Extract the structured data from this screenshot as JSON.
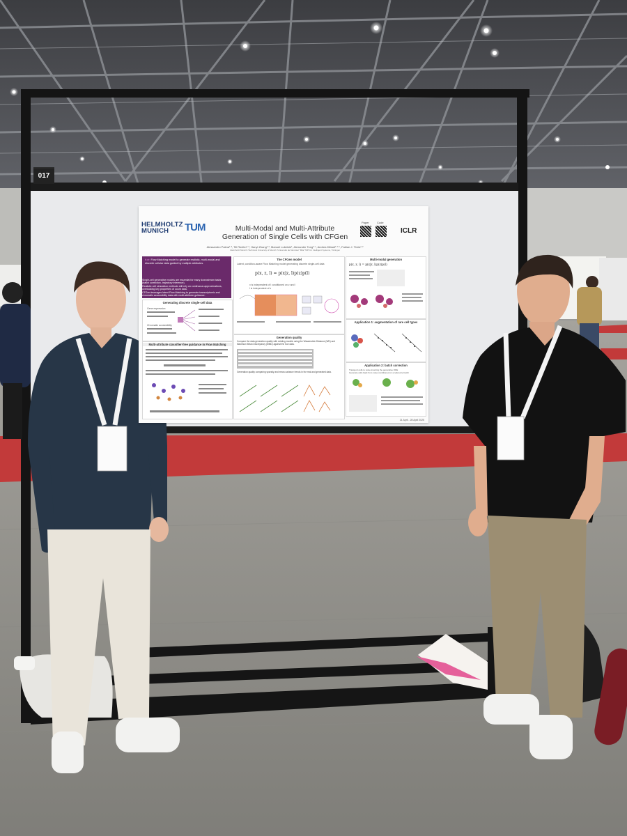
{
  "booth": {
    "number": "017"
  },
  "poster": {
    "logos": {
      "helmholtz_line1": "HELMHOLTZ",
      "helmholtz_line2": "MUNICH",
      "tum": "TUM",
      "iclr": "ICLR"
    },
    "qr_labels": {
      "paper": "Paper",
      "code": "Code"
    },
    "title_line1": "Multi-Modal and Multi-Attribute",
    "title_line2": "Generation of Single Cells with CFGen",
    "authors": "Alessandro Palma¹·², Till Richter¹·², Hanyi Zhang¹·², Manuel Lubetzki¹, Alexander Tong³·⁴, Andrea Dittadi¹·²·⁵, Fabian J. Theis¹·²",
    "affiliations": "¹Helmholtz Munich  ²Technical University of Munich  ³Université de Montréal  ⁴Mila  ⁵MPI for Intelligent Systems, Tübingen",
    "tldr_label": "tl;dr:",
    "tldr": "Flow Matching model to generate realistic, multi-modal and discrete cellular data guided by multiple attributes.",
    "bullets": [
      "Single-cell generative models are essential for many downstream tasks (batch correction, trajectory inference).",
      "Realistic cell simulation methods still rely on continuous approximations, overlooking key properties of count data.",
      "CFGen leverages latent Flow Matching to generate transcriptomic and chromatin accessibility data with multi-attribute guidance."
    ],
    "sections": {
      "generating": "Generating discrete single-cell data",
      "guidance": "Multi-attribute classifier-free guidance in Flow Matching",
      "model": "The CFGen model",
      "model_sub": "Latent, condition-aware Flow Matching model generating discrete single-cell data",
      "quality": "Generation quality",
      "multimodal": "Multi-modal generation",
      "app1": "Application 1: augmentation of rare cell types",
      "app2": "Application 2: batch correction"
    },
    "left_labels": [
      "Gene expression",
      "Chromatin accessibility"
    ],
    "model_equation": "p(x, z, l) = p(x|z, l)p(z)p(l)",
    "assumptions": [
      "x is independent of l conditioned on z and l",
      "l is independent of z"
    ],
    "multimodal_equation": "p(x, z, l) = p(x|z, l)p(z)p(l)",
    "quality_text": "Compare the data generation quality with existing models using the Wasserstein Distance (WD) and Maximum Mean Discrepancy (MMD) against the true data.",
    "quality_note": "Generation quality comparing sparsity and mean-variance trends in the real and generated data.",
    "app2_bullets": [
      "Transport cells to noise inverting the generative ODE",
      "Generate cells back from noise conditioned on a reference batch"
    ],
    "date_note": "21 April - 28 April 2025"
  },
  "colors": {
    "poster_purple": "#6a2a6a",
    "floor": "#8e8d88",
    "carpet": "#c0393a",
    "frame": "#141414"
  }
}
